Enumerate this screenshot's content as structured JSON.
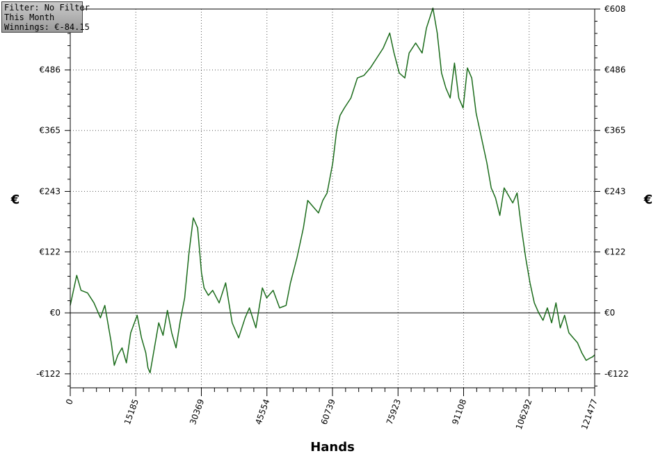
{
  "info_box": {
    "filter": "Filter: No Filter",
    "period": "This Month",
    "winnings": "Winnings: €-84.15"
  },
  "colors": {
    "line": "#1a6b1a",
    "grid": "#555555",
    "axis": "#000000"
  },
  "chart_data": {
    "type": "line",
    "title": "",
    "xlabel": "Hands",
    "ylabel": "€",
    "ylabel_right": "€",
    "xlim": [
      0,
      121477
    ],
    "ylim": [
      -150,
      608
    ],
    "grid": true,
    "x_ticks": [
      0,
      15185,
      30369,
      45554,
      60739,
      75923,
      91108,
      106292,
      121477
    ],
    "x_tick_labels": [
      "0",
      "15185",
      "30369",
      "45554",
      "60739",
      "75923",
      "91108",
      "106292",
      "121477"
    ],
    "y_ticks": [
      -122,
      0,
      122,
      243,
      365,
      486,
      608
    ],
    "y_tick_labels": [
      "-€122",
      "€0",
      "€122",
      "€243",
      "€365",
      "€486",
      "€608"
    ],
    "zero_line": 0,
    "series": [
      {
        "x": [
          0,
          1500,
          2500,
          4000,
          5500,
          7000,
          8000,
          9000,
          9500,
          10200,
          11000,
          12000,
          13000,
          14000,
          15500,
          16500,
          17500,
          18000,
          18500,
          19500,
          20500,
          21500,
          22500,
          23500,
          24500,
          25500,
          26500,
          27500,
          28500,
          29500,
          30400,
          31000,
          32000,
          33000,
          34500,
          36000,
          37500,
          39000,
          40500,
          41500,
          43000,
          44500,
          45500,
          47000,
          48500,
          50000,
          51000,
          52500,
          54000,
          55000,
          56500,
          57500,
          58500,
          59500,
          60800,
          61700,
          62500,
          63500,
          65000,
          66500,
          68000,
          69500,
          71000,
          72500,
          74000,
          75000,
          76200,
          77500,
          78500,
          80000,
          81500,
          82500,
          84000,
          85000,
          86000,
          87000,
          88000,
          89000,
          90000,
          91000,
          92000,
          93000,
          94000,
          95000,
          96500,
          97500,
          98500,
          99500,
          100500,
          101500,
          102500,
          103500,
          104500,
          105500,
          106500,
          107500,
          108500,
          109500,
          110500,
          111500,
          112500,
          113500,
          114500,
          115500,
          116500,
          117500,
          118500,
          119500,
          120500,
          121000,
          121477
        ],
        "y": [
          15,
          75,
          45,
          40,
          20,
          -10,
          15,
          -35,
          -60,
          -105,
          -85,
          -70,
          -100,
          -40,
          -5,
          -50,
          -80,
          -110,
          -120,
          -70,
          -20,
          -45,
          5,
          -40,
          -70,
          -15,
          30,
          120,
          190,
          170,
          80,
          50,
          35,
          45,
          20,
          60,
          -20,
          -50,
          -10,
          10,
          -30,
          50,
          30,
          45,
          10,
          15,
          60,
          110,
          170,
          225,
          210,
          200,
          225,
          240,
          300,
          365,
          395,
          410,
          430,
          470,
          475,
          490,
          510,
          530,
          560,
          520,
          480,
          470,
          520,
          540,
          520,
          570,
          610,
          560,
          480,
          450,
          430,
          500,
          430,
          410,
          490,
          470,
          400,
          360,
          300,
          250,
          230,
          195,
          250,
          235,
          220,
          240,
          170,
          110,
          60,
          20,
          0,
          -15,
          10,
          -20,
          20,
          -30,
          -5,
          -40,
          -50,
          -60,
          -80,
          -95,
          -90,
          -88,
          -84
        ]
      }
    ]
  }
}
